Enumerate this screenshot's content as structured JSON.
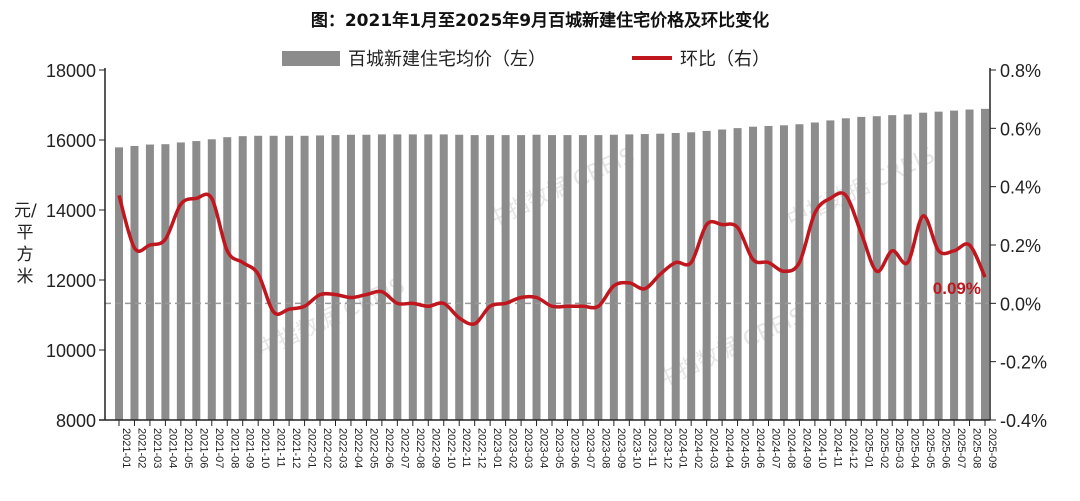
{
  "chart_data": {
    "type": "bar+line",
    "title": "图：2021年1月至2025年9月百城新建住宅价格及环比变化",
    "ylabel": "元/平方米",
    "ylim_left": [
      8000,
      18000
    ],
    "yticks_left": [
      "8000",
      "10000",
      "12000",
      "14000",
      "16000",
      "18000"
    ],
    "ylim_right": [
      -0.4,
      0.8
    ],
    "yticks_right": [
      "-0.4%",
      "-0.2%",
      "0.0%",
      "0.2%",
      "0.4%",
      "0.6%",
      "0.8%"
    ],
    "legend_position": "top",
    "categories": [
      "2021-01",
      "2021-02",
      "2021-03",
      "2021-04",
      "2021-05",
      "2021-06",
      "2021-07",
      "2021-08",
      "2021-09",
      "2021-10",
      "2021-11",
      "2021-12",
      "2022-01",
      "2022-02",
      "2022-03",
      "2022-04",
      "2022-05",
      "2022-06",
      "2022-07",
      "2022-08",
      "2022-09",
      "2022-10",
      "2022-11",
      "2022-12",
      "2023-01",
      "2023-02",
      "2023-03",
      "2023-04",
      "2023-05",
      "2023-06",
      "2023-07",
      "2023-08",
      "2023-09",
      "2023-10",
      "2023-11",
      "2023-12",
      "2024-01",
      "2024-02",
      "2024-03",
      "2024-04",
      "2024-05",
      "2024-06",
      "2024-07",
      "2024-08",
      "2024-09",
      "2024-10",
      "2024-11",
      "2024-12",
      "2025-01",
      "2025-02",
      "2025-03",
      "2025-04",
      "2025-05",
      "2025-06",
      "2025-07",
      "2025-08",
      "2025-09"
    ],
    "series": [
      {
        "name": "百城新建住宅均价（左）",
        "type": "bar",
        "axis": "left",
        "color": "#8c8c8c",
        "values": [
          15790,
          15830,
          15870,
          15880,
          15930,
          15970,
          16020,
          16080,
          16110,
          16120,
          16120,
          16120,
          16120,
          16130,
          16140,
          16150,
          16150,
          16160,
          16160,
          16160,
          16160,
          16160,
          16150,
          16140,
          16140,
          16140,
          16140,
          16150,
          16140,
          16140,
          16140,
          16140,
          16150,
          16160,
          16170,
          16180,
          16200,
          16220,
          16260,
          16300,
          16340,
          16380,
          16400,
          16420,
          16450,
          16500,
          16560,
          16620,
          16660,
          16680,
          16710,
          16730,
          16780,
          16810,
          16840,
          16870,
          16890
        ]
      },
      {
        "name": "环比（右）",
        "type": "line",
        "axis": "right",
        "unit": "%",
        "color": "#c0171f",
        "values": [
          0.37,
          0.19,
          0.2,
          0.22,
          0.34,
          0.36,
          0.36,
          0.18,
          0.14,
          0.1,
          -0.03,
          -0.02,
          -0.01,
          0.03,
          0.03,
          0.02,
          0.03,
          0.04,
          0.0,
          0.0,
          -0.01,
          0.0,
          -0.05,
          -0.07,
          -0.01,
          0.0,
          0.02,
          0.02,
          -0.01,
          -0.01,
          -0.01,
          -0.01,
          0.06,
          0.07,
          0.05,
          0.1,
          0.14,
          0.14,
          0.27,
          0.27,
          0.26,
          0.15,
          0.14,
          0.11,
          0.14,
          0.31,
          0.36,
          0.37,
          0.24,
          0.11,
          0.18,
          0.14,
          0.3,
          0.18,
          0.18,
          0.2,
          0.09
        ]
      }
    ],
    "annotation": "0.09%",
    "watermark": "中指数据 CREIS"
  }
}
